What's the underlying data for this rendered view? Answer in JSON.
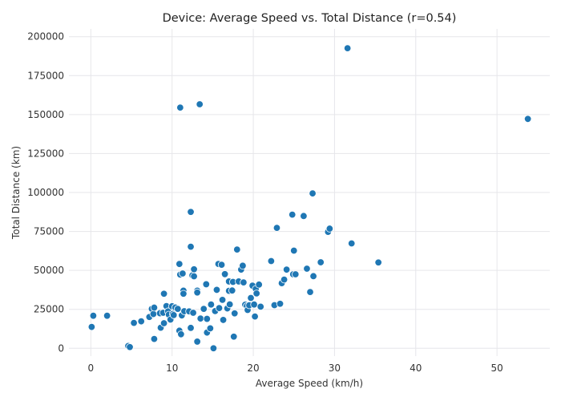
{
  "chart_data": {
    "type": "scatter",
    "title": "Device: Average Speed vs. Total Distance (r=0.54)",
    "xlabel": "Average Speed (km/h)",
    "ylabel": "Total Distance (km)",
    "xlim": [
      -2.7,
      56.5
    ],
    "ylim": [
      -5000,
      205000
    ],
    "xticks": [
      0,
      10,
      20,
      30,
      40,
      50
    ],
    "yticks": [
      0,
      25000,
      50000,
      75000,
      100000,
      125000,
      150000,
      175000,
      200000
    ],
    "xtick_labels": [
      "0",
      "10",
      "20",
      "30",
      "40",
      "50"
    ],
    "ytick_labels": [
      "0",
      "25000",
      "50000",
      "75000",
      "100000",
      "125000",
      "150000",
      "175000",
      "200000"
    ],
    "grid": true,
    "colors": {
      "point": "#1f77b4",
      "point_edge": "#ffffff",
      "grid": "#e6e6ea",
      "background": "#ffffff"
    },
    "series": [
      {
        "points": [
          [
            0.1,
            13700
          ],
          [
            0.3,
            20900
          ],
          [
            2.0,
            20900
          ],
          [
            4.6,
            1500
          ],
          [
            4.8,
            800
          ],
          [
            5.3,
            16300
          ],
          [
            6.2,
            17300
          ],
          [
            7.2,
            20100
          ],
          [
            7.5,
            25300
          ],
          [
            7.7,
            22000
          ],
          [
            7.8,
            26100
          ],
          [
            7.8,
            6000
          ],
          [
            8.5,
            22500
          ],
          [
            8.6,
            13200
          ],
          [
            8.9,
            22800
          ],
          [
            9.0,
            16100
          ],
          [
            9.0,
            35000
          ],
          [
            9.3,
            27100
          ],
          [
            9.5,
            23700
          ],
          [
            9.6,
            21600
          ],
          [
            9.8,
            18400
          ],
          [
            10.0,
            27000
          ],
          [
            10.1,
            22100
          ],
          [
            10.2,
            21300
          ],
          [
            10.4,
            26200
          ],
          [
            10.7,
            25300
          ],
          [
            10.9,
            54100
          ],
          [
            10.9,
            11300
          ],
          [
            11.0,
            154500
          ],
          [
            11.0,
            47300
          ],
          [
            11.1,
            9000
          ],
          [
            11.2,
            21100
          ],
          [
            11.3,
            48000
          ],
          [
            11.4,
            37000
          ],
          [
            11.4,
            35000
          ],
          [
            11.5,
            23800
          ],
          [
            12.1,
            23700
          ],
          [
            12.3,
            87500
          ],
          [
            12.3,
            65200
          ],
          [
            12.3,
            13100
          ],
          [
            12.5,
            46800
          ],
          [
            12.6,
            22800
          ],
          [
            12.7,
            50700
          ],
          [
            12.7,
            46200
          ],
          [
            13.1,
            37000
          ],
          [
            13.1,
            35800
          ],
          [
            13.1,
            4300
          ],
          [
            13.4,
            156600
          ],
          [
            13.5,
            19100
          ],
          [
            13.9,
            25300
          ],
          [
            14.2,
            41100
          ],
          [
            14.3,
            10100
          ],
          [
            14.3,
            18900
          ],
          [
            14.7,
            12800
          ],
          [
            14.8,
            28100
          ],
          [
            15.1,
            0
          ],
          [
            15.3,
            23900
          ],
          [
            15.5,
            37500
          ],
          [
            15.7,
            54100
          ],
          [
            15.8,
            25800
          ],
          [
            16.1,
            53600
          ],
          [
            16.2,
            31100
          ],
          [
            16.3,
            18200
          ],
          [
            16.5,
            47600
          ],
          [
            16.8,
            25600
          ],
          [
            17.0,
            36900
          ],
          [
            17.0,
            42900
          ],
          [
            17.1,
            28200
          ],
          [
            17.4,
            37100
          ],
          [
            17.5,
            42600
          ],
          [
            17.6,
            7500
          ],
          [
            17.7,
            22400
          ],
          [
            18.0,
            63400
          ],
          [
            18.2,
            42900
          ],
          [
            18.5,
            50500
          ],
          [
            18.7,
            53000
          ],
          [
            18.8,
            42300
          ],
          [
            19.0,
            28000
          ],
          [
            19.2,
            27100
          ],
          [
            19.3,
            24600
          ],
          [
            19.5,
            27600
          ],
          [
            19.7,
            32300
          ],
          [
            19.9,
            40200
          ],
          [
            20.1,
            28100
          ],
          [
            20.2,
            20400
          ],
          [
            20.3,
            38100
          ],
          [
            20.4,
            35200
          ],
          [
            20.7,
            40900
          ],
          [
            20.9,
            26700
          ],
          [
            22.2,
            56000
          ],
          [
            22.6,
            27700
          ],
          [
            22.9,
            77300
          ],
          [
            23.3,
            28600
          ],
          [
            23.5,
            41800
          ],
          [
            23.8,
            44100
          ],
          [
            24.1,
            50500
          ],
          [
            24.8,
            85800
          ],
          [
            24.9,
            47500
          ],
          [
            25.0,
            62700
          ],
          [
            25.2,
            47500
          ],
          [
            26.2,
            84900
          ],
          [
            26.6,
            51100
          ],
          [
            27.0,
            36100
          ],
          [
            27.3,
            99400
          ],
          [
            27.4,
            46300
          ],
          [
            28.3,
            55200
          ],
          [
            29.2,
            74700
          ],
          [
            29.4,
            76800
          ],
          [
            31.6,
            192600
          ],
          [
            32.1,
            67300
          ],
          [
            35.4,
            55100
          ],
          [
            53.8,
            147200
          ]
        ]
      }
    ]
  }
}
